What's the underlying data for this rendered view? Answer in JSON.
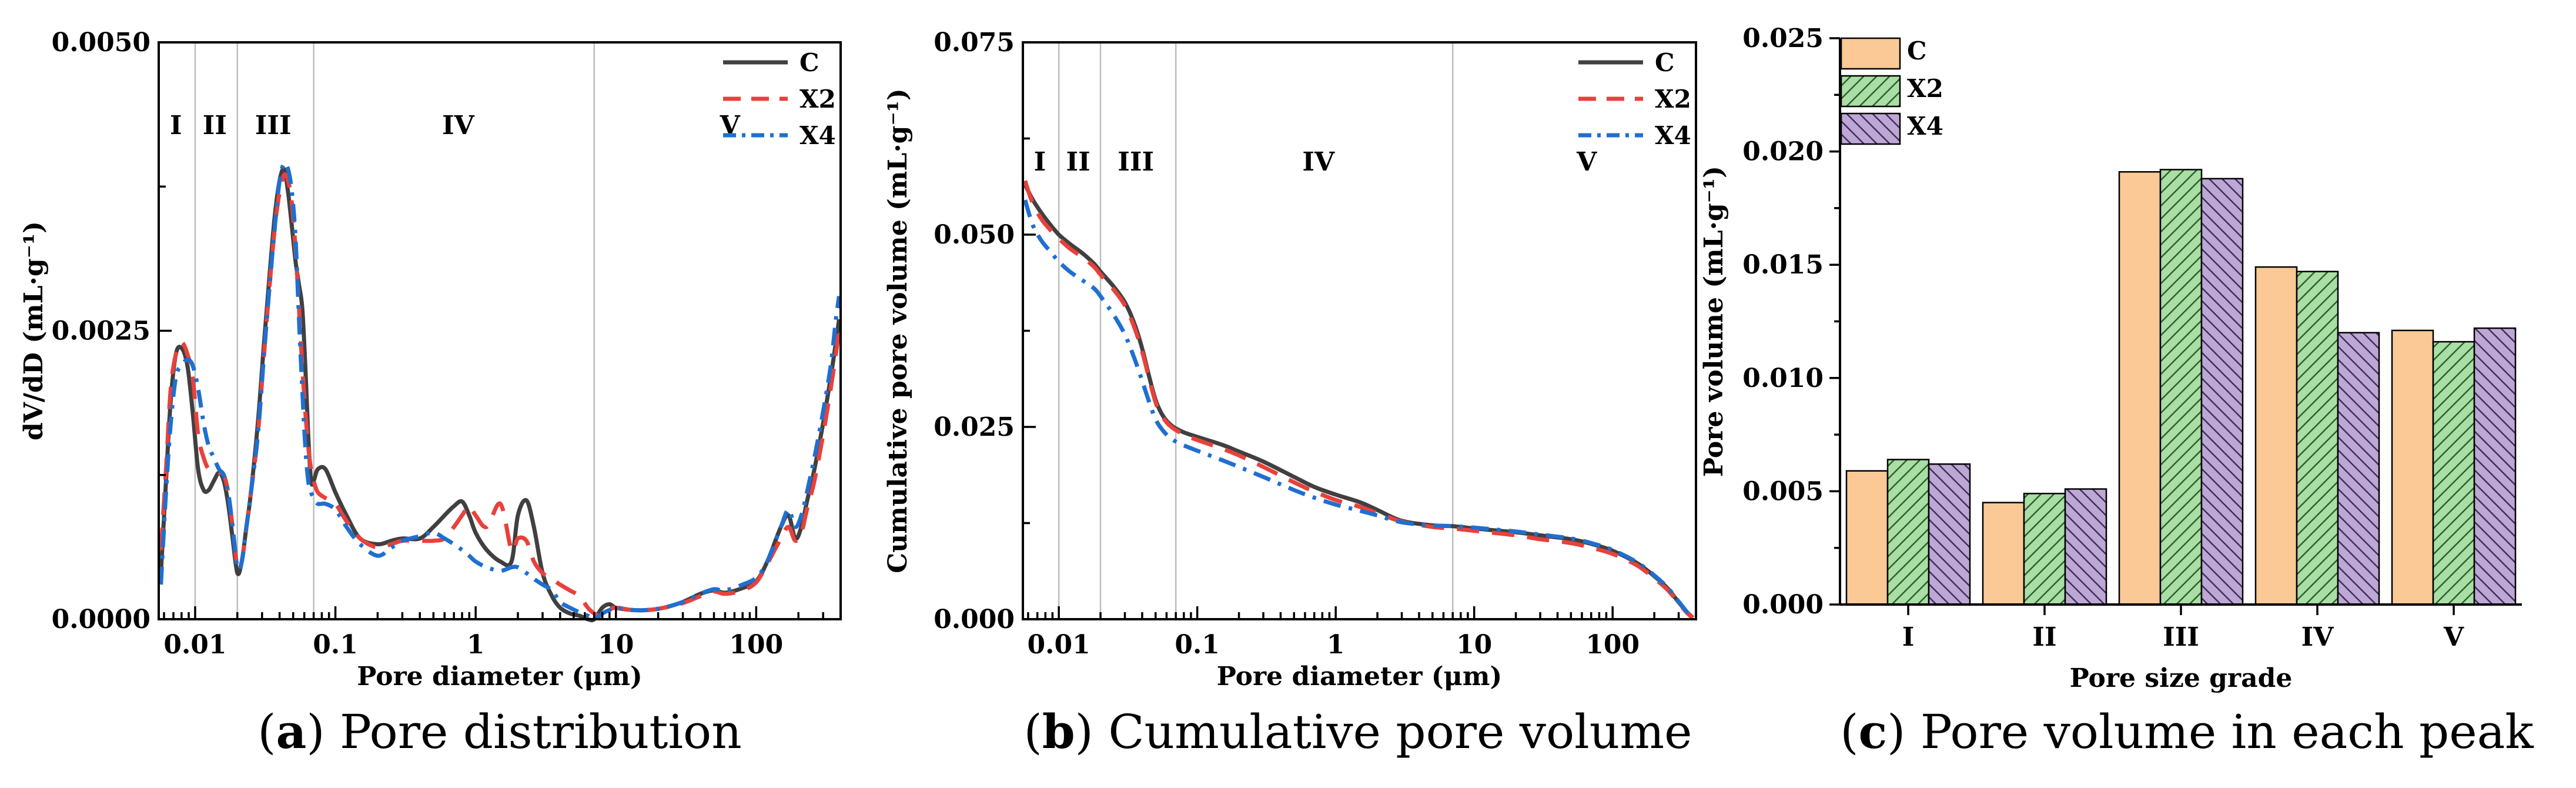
{
  "chart_data": [
    {
      "id": "a",
      "type": "line",
      "caption_letter": "a",
      "caption_text": "Pore distribution",
      "xlabel": "Pore diameter  (μm)",
      "ylabel": "dV/dD  (mL·g⁻¹)",
      "xscale": "log",
      "xlim": [
        0.0055,
        400
      ],
      "ylim": [
        0,
        0.005
      ],
      "xticks": [
        0.01,
        0.1,
        1,
        10,
        100
      ],
      "xtick_labels": [
        "0.01",
        "0.1",
        "1",
        "10",
        "100"
      ],
      "yticks": [
        0,
        0.0025,
        0.005
      ],
      "ytick_labels": [
        "0.0000",
        "0.0025",
        "0.0050"
      ],
      "regions": [
        {
          "label": "I",
          "x": 0.0073
        },
        {
          "label": "II",
          "x": 0.0138
        },
        {
          "label": "III",
          "x": 0.036
        },
        {
          "label": "IV",
          "x": 0.75
        },
        {
          "label": "V",
          "x": 65
        }
      ],
      "region_boundaries": [
        0.01,
        0.02,
        0.07,
        7
      ],
      "legend_position": "top-right",
      "series": [
        {
          "name": "C",
          "color": "#404040",
          "dash": "solid",
          "x": [
            0.0057,
            0.0062,
            0.0067,
            0.0073,
            0.008,
            0.0088,
            0.0096,
            0.0105,
            0.0115,
            0.0125,
            0.0136,
            0.0148,
            0.016,
            0.0172,
            0.0185,
            0.02,
            0.0215,
            0.0232,
            0.025,
            0.028,
            0.031,
            0.034,
            0.037,
            0.04,
            0.043,
            0.046,
            0.049,
            0.052,
            0.055,
            0.058,
            0.061,
            0.064,
            0.067,
            0.07,
            0.075,
            0.085,
            0.1,
            0.12,
            0.15,
            0.2,
            0.25,
            0.3,
            0.4,
            0.5,
            0.6,
            0.7,
            0.8,
            0.9,
            1.0,
            1.2,
            1.5,
            1.8,
            2.0,
            2.3,
            2.6,
            3.0,
            3.5,
            4.0,
            4.7,
            5.5,
            6.3,
            7.0,
            8.0,
            9.0,
            10,
            13,
            17,
            22,
            30,
            40,
            50,
            60,
            80,
            100,
            120,
            150,
            170,
            190,
            210,
            230,
            260,
            300,
            340,
            370,
            390
          ],
          "y": [
            0.0004,
            0.0012,
            0.0019,
            0.0023,
            0.00235,
            0.0022,
            0.0018,
            0.0013,
            0.00112,
            0.00112,
            0.0012,
            0.00127,
            0.0012,
            0.001,
            0.0007,
            0.0004,
            0.0005,
            0.0008,
            0.0011,
            0.0017,
            0.0024,
            0.003,
            0.0035,
            0.0038,
            0.0039,
            0.0037,
            0.0034,
            0.0031,
            0.0029,
            0.0027,
            0.0022,
            0.0016,
            0.0012,
            0.0012,
            0.0013,
            0.0013,
            0.0011,
            0.0009,
            0.0007,
            0.00065,
            0.00068,
            0.0007,
            0.0007,
            0.0008,
            0.0009,
            0.00098,
            0.00102,
            0.0009,
            0.00075,
            0.0006,
            0.0005,
            0.0005,
            0.0009,
            0.00103,
            0.0008,
            0.0004,
            0.0002,
            0.0001,
            5e-05,
            3e-05,
            0.0,
            0.0,
            0.0001,
            0.00013,
            0.0001,
            8e-05,
            8e-05,
            0.0001,
            0.00015,
            0.00022,
            0.00025,
            0.00023,
            0.00027,
            0.00033,
            0.0005,
            0.0008,
            0.0009,
            0.0007,
            0.0008,
            0.00102,
            0.0013,
            0.0017,
            0.0021,
            0.0024,
            0.0026
          ]
        },
        {
          "name": "X2",
          "color": "#e8413b",
          "dash": "38,22",
          "x": [
            0.0057,
            0.0062,
            0.0067,
            0.0073,
            0.008,
            0.0088,
            0.0096,
            0.0105,
            0.0115,
            0.0125,
            0.0136,
            0.0148,
            0.016,
            0.0172,
            0.0185,
            0.02,
            0.0215,
            0.0232,
            0.025,
            0.028,
            0.031,
            0.034,
            0.037,
            0.04,
            0.043,
            0.046,
            0.049,
            0.052,
            0.055,
            0.058,
            0.061,
            0.064,
            0.067,
            0.07,
            0.075,
            0.085,
            0.1,
            0.12,
            0.15,
            0.2,
            0.25,
            0.3,
            0.4,
            0.5,
            0.6,
            0.7,
            0.8,
            0.9,
            1.0,
            1.2,
            1.5,
            1.8,
            2.0,
            2.3,
            2.6,
            3.0,
            3.5,
            4.0,
            4.7,
            5.5,
            6.3,
            7.0,
            8.0,
            9.0,
            10,
            13,
            17,
            22,
            30,
            40,
            50,
            60,
            80,
            100,
            120,
            150,
            170,
            190,
            210,
            230,
            260,
            300,
            340,
            370,
            390
          ],
          "y": [
            0.0006,
            0.0013,
            0.002,
            0.0023,
            0.0024,
            0.0023,
            0.0021,
            0.0016,
            0.0014,
            0.0013,
            0.0013,
            0.00127,
            0.00125,
            0.0011,
            0.0008,
            0.00045,
            0.0005,
            0.0008,
            0.0011,
            0.0016,
            0.0023,
            0.0029,
            0.0034,
            0.0037,
            0.00385,
            0.0038,
            0.0036,
            0.0032,
            0.0027,
            0.0022,
            0.0018,
            0.0015,
            0.0013,
            0.0012,
            0.0011,
            0.00105,
            0.001,
            0.00085,
            0.0007,
            0.00062,
            0.00065,
            0.00068,
            0.00068,
            0.00068,
            0.0007,
            0.0008,
            0.0009,
            0.00098,
            0.0009,
            0.0008,
            0.001,
            0.0006,
            0.0007,
            0.00068,
            0.0005,
            0.0004,
            0.00035,
            0.0003,
            0.00025,
            0.0002,
            0.0001,
            5e-05,
            2e-05,
            8e-05,
            0.0001,
            8e-05,
            8e-05,
            0.0001,
            0.00014,
            0.0002,
            0.00024,
            0.00022,
            0.00025,
            0.00032,
            0.00048,
            0.0007,
            0.0008,
            0.00068,
            0.00075,
            0.00095,
            0.0012,
            0.0016,
            0.002,
            0.0023,
            0.0025
          ]
        },
        {
          "name": "X4",
          "color": "#1f6fd1",
          "dash": "30,14,6,14",
          "x": [
            0.0057,
            0.0062,
            0.0067,
            0.0073,
            0.008,
            0.0088,
            0.0096,
            0.0105,
            0.0115,
            0.0125,
            0.0136,
            0.0148,
            0.016,
            0.0172,
            0.0185,
            0.02,
            0.0215,
            0.0232,
            0.025,
            0.028,
            0.031,
            0.034,
            0.037,
            0.04,
            0.043,
            0.046,
            0.049,
            0.052,
            0.055,
            0.058,
            0.061,
            0.064,
            0.067,
            0.07,
            0.075,
            0.085,
            0.1,
            0.12,
            0.15,
            0.2,
            0.25,
            0.3,
            0.4,
            0.5,
            0.6,
            0.7,
            0.8,
            0.9,
            1.0,
            1.2,
            1.5,
            1.8,
            2.0,
            2.3,
            2.6,
            3.0,
            3.5,
            4.0,
            4.7,
            5.5,
            6.3,
            7.0,
            8.0,
            9.0,
            10,
            13,
            17,
            22,
            30,
            40,
            50,
            60,
            80,
            100,
            120,
            150,
            170,
            190,
            210,
            230,
            260,
            300,
            340,
            370,
            390
          ],
          "y": [
            0.0003,
            0.0011,
            0.0017,
            0.0021,
            0.0022,
            0.00225,
            0.0022,
            0.002,
            0.0017,
            0.0015,
            0.0014,
            0.0013,
            0.00125,
            0.0011,
            0.0008,
            0.00045,
            0.0005,
            0.0008,
            0.0011,
            0.0016,
            0.0023,
            0.0029,
            0.0034,
            0.0038,
            0.00395,
            0.0039,
            0.0037,
            0.0033,
            0.0026,
            0.002,
            0.0015,
            0.0012,
            0.0011,
            0.00105,
            0.001,
            0.001,
            0.00095,
            0.0008,
            0.00065,
            0.00055,
            0.00062,
            0.00068,
            0.00072,
            0.00075,
            0.0007,
            0.00065,
            0.0006,
            0.00055,
            0.0005,
            0.00045,
            0.00042,
            0.00045,
            0.00045,
            0.0004,
            0.00035,
            0.0003,
            0.00025,
            0.00015,
            0.0001,
            6e-05,
            3e-05,
            0.0,
            5e-05,
            8e-05,
            0.0001,
            8e-05,
            8e-05,
            0.0001,
            0.00015,
            0.00022,
            0.00026,
            0.00025,
            0.0003,
            0.00036,
            0.0005,
            0.0008,
            0.00095,
            0.0008,
            0.0009,
            0.0011,
            0.0014,
            0.0018,
            0.0022,
            0.0026,
            0.0028
          ]
        }
      ]
    },
    {
      "id": "b",
      "type": "line",
      "caption_letter": "b",
      "caption_text": "Cumulative pore volume",
      "xlabel": "Pore diameter  (μm)",
      "ylabel": "Cumulative pore volume  (mL·g⁻¹)",
      "xscale": "log",
      "xlim": [
        0.0055,
        400
      ],
      "ylim": [
        0,
        0.075
      ],
      "xticks": [
        0.01,
        0.1,
        1,
        10,
        100
      ],
      "xtick_labels": [
        "0.01",
        "0.1",
        "1",
        "10",
        "100"
      ],
      "yticks": [
        0,
        0.025,
        0.05,
        0.075
      ],
      "ytick_labels": [
        "0.000",
        "0.025",
        "0.050",
        "0.075"
      ],
      "regions": [
        {
          "label": "I",
          "x": 0.0073
        },
        {
          "label": "II",
          "x": 0.0138
        },
        {
          "label": "III",
          "x": 0.036
        },
        {
          "label": "IV",
          "x": 0.75
        },
        {
          "label": "V",
          "x": 65
        }
      ],
      "region_boundaries": [
        0.01,
        0.02,
        0.07,
        7
      ],
      "legend_position": "top-right",
      "series": [
        {
          "name": "C",
          "color": "#404040",
          "dash": "solid",
          "x": [
            0.0057,
            0.0065,
            0.0075,
            0.0085,
            0.01,
            0.012,
            0.015,
            0.018,
            0.02,
            0.025,
            0.03,
            0.035,
            0.04,
            0.045,
            0.05,
            0.055,
            0.06,
            0.065,
            0.07,
            0.08,
            0.1,
            0.15,
            0.2,
            0.3,
            0.5,
            0.7,
            1.0,
            1.5,
            2.0,
            3.0,
            5.0,
            7.0,
            10,
            20,
            30,
            50,
            70,
            100,
            150,
            200,
            250,
            300,
            350,
            380
          ],
          "y": [
            0.0565,
            0.0545,
            0.0528,
            0.0515,
            0.05,
            0.0488,
            0.0475,
            0.0462,
            0.0452,
            0.0432,
            0.0412,
            0.0385,
            0.0352,
            0.0315,
            0.0285,
            0.0268,
            0.0258,
            0.0252,
            0.0248,
            0.0243,
            0.0237,
            0.0227,
            0.0218,
            0.0205,
            0.0185,
            0.0172,
            0.0162,
            0.0152,
            0.0142,
            0.0128,
            0.0122,
            0.0121,
            0.0118,
            0.0113,
            0.0109,
            0.0104,
            0.0098,
            0.0089,
            0.0073,
            0.0056,
            0.004,
            0.0022,
            0.0008,
            0.0002
          ]
        },
        {
          "name": "X2",
          "color": "#e8413b",
          "dash": "38,22",
          "x": [
            0.0057,
            0.0065,
            0.0075,
            0.0085,
            0.01,
            0.012,
            0.015,
            0.018,
            0.02,
            0.025,
            0.03,
            0.035,
            0.04,
            0.045,
            0.05,
            0.055,
            0.06,
            0.065,
            0.07,
            0.08,
            0.1,
            0.15,
            0.2,
            0.3,
            0.5,
            0.7,
            1.0,
            1.5,
            2.0,
            3.0,
            5.0,
            7.0,
            10,
            20,
            30,
            50,
            70,
            100,
            150,
            200,
            250,
            300,
            350,
            380
          ],
          "y": [
            0.057,
            0.054,
            0.052,
            0.0508,
            0.0495,
            0.0482,
            0.047,
            0.0458,
            0.0448,
            0.0428,
            0.0408,
            0.038,
            0.0348,
            0.0312,
            0.0282,
            0.0266,
            0.0256,
            0.025,
            0.0246,
            0.024,
            0.0233,
            0.0222,
            0.0213,
            0.0198,
            0.0178,
            0.0166,
            0.0155,
            0.0146,
            0.0138,
            0.0127,
            0.012,
            0.0118,
            0.0115,
            0.0109,
            0.0104,
            0.0099,
            0.0093,
            0.0085,
            0.007,
            0.0053,
            0.0038,
            0.0021,
            0.0007,
            0.0002
          ]
        },
        {
          "name": "X4",
          "color": "#1f6fd1",
          "dash": "30,14,6,14",
          "x": [
            0.0057,
            0.0065,
            0.0075,
            0.0085,
            0.01,
            0.012,
            0.015,
            0.018,
            0.02,
            0.025,
            0.03,
            0.035,
            0.04,
            0.045,
            0.05,
            0.055,
            0.06,
            0.065,
            0.07,
            0.08,
            0.1,
            0.15,
            0.2,
            0.3,
            0.5,
            0.7,
            1.0,
            1.5,
            2.0,
            3.0,
            5.0,
            7.0,
            10,
            20,
            30,
            50,
            70,
            100,
            150,
            200,
            250,
            300,
            350,
            380
          ],
          "y": [
            0.0545,
            0.0512,
            0.0492,
            0.048,
            0.0465,
            0.0452,
            0.044,
            0.043,
            0.042,
            0.0395,
            0.037,
            0.034,
            0.031,
            0.0282,
            0.026,
            0.0248,
            0.024,
            0.0235,
            0.0231,
            0.0226,
            0.0219,
            0.0207,
            0.0198,
            0.0185,
            0.0168,
            0.0158,
            0.0149,
            0.0141,
            0.0135,
            0.0126,
            0.0122,
            0.0121,
            0.0119,
            0.0114,
            0.011,
            0.0105,
            0.0099,
            0.009,
            0.0074,
            0.0057,
            0.0041,
            0.0023,
            0.0008,
            0.0002
          ]
        }
      ]
    },
    {
      "id": "c",
      "type": "bar",
      "caption_letter": "c",
      "caption_text": "Pore volume in each peak",
      "xlabel": "Pore size grade",
      "ylabel": "Pore volume  (mL·g⁻¹)",
      "ylim": [
        0,
        0.025
      ],
      "yticks": [
        0,
        0.005,
        0.01,
        0.015,
        0.02,
        0.025
      ],
      "ytick_labels": [
        "0.000",
        "0.005",
        "0.010",
        "0.015",
        "0.020",
        "0.025"
      ],
      "categories": [
        "I",
        "II",
        "III",
        "IV",
        "V"
      ],
      "legend_position": "top-left",
      "series": [
        {
          "name": "C",
          "color": "#fbc995",
          "pattern": "none",
          "values": [
            0.0059,
            0.0045,
            0.0191,
            0.0149,
            0.0121
          ]
        },
        {
          "name": "X2",
          "color": "#a9dea5",
          "pattern": "hatch-forward",
          "values": [
            0.0064,
            0.0049,
            0.0192,
            0.0147,
            0.0116
          ]
        },
        {
          "name": "X4",
          "color": "#bda7d4",
          "pattern": "hatch-back",
          "values": [
            0.0062,
            0.0051,
            0.0188,
            0.012,
            0.0122
          ]
        }
      ]
    }
  ]
}
